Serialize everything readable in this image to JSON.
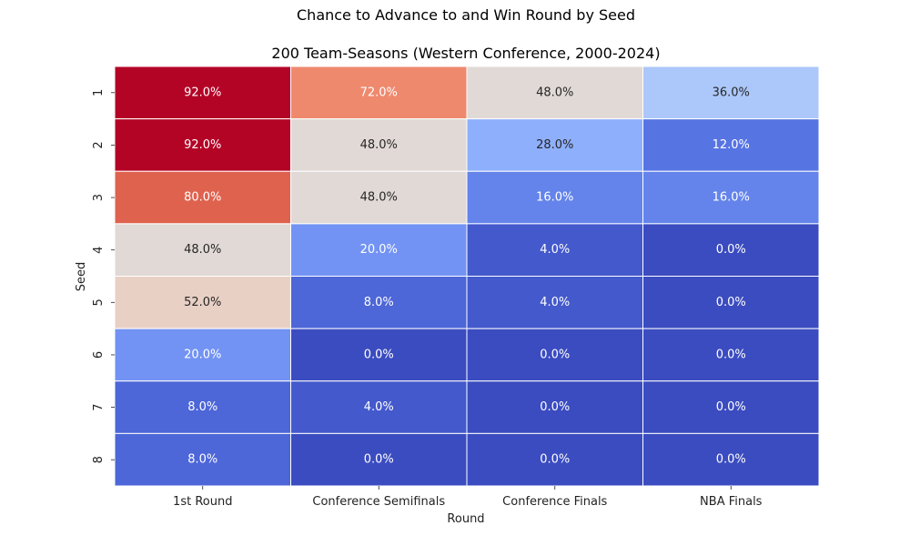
{
  "chart_data": {
    "type": "heatmap",
    "title": "Chance to Advance to and Win Round by Seed",
    "subtitle": "200 Team-Seasons (Western Conference, 2000-2024)",
    "xlabel": "Round",
    "ylabel": "Seed",
    "x_categories": [
      "1st Round",
      "Conference Semifinals",
      "Conference Finals",
      "NBA Finals"
    ],
    "y_categories": [
      "1",
      "2",
      "3",
      "4",
      "5",
      "6",
      "7",
      "8"
    ],
    "values": [
      [
        92.0,
        72.0,
        48.0,
        36.0
      ],
      [
        92.0,
        48.0,
        28.0,
        12.0
      ],
      [
        80.0,
        48.0,
        16.0,
        16.0
      ],
      [
        48.0,
        20.0,
        4.0,
        0.0
      ],
      [
        52.0,
        8.0,
        4.0,
        0.0
      ],
      [
        20.0,
        0.0,
        0.0,
        0.0
      ],
      [
        8.0,
        4.0,
        0.0,
        0.0
      ],
      [
        8.0,
        0.0,
        0.0,
        0.0
      ]
    ],
    "value_labels": [
      [
        "92.0%",
        "72.0%",
        "48.0%",
        "36.0%"
      ],
      [
        "92.0%",
        "48.0%",
        "28.0%",
        "12.0%"
      ],
      [
        "80.0%",
        "48.0%",
        "16.0%",
        "16.0%"
      ],
      [
        "48.0%",
        "20.0%",
        "4.0%",
        "0.0%"
      ],
      [
        "52.0%",
        "8.0%",
        "4.0%",
        "0.0%"
      ],
      [
        "20.0%",
        "0.0%",
        "0.0%",
        "0.0%"
      ],
      [
        "8.0%",
        "4.0%",
        "0.0%",
        "0.0%"
      ],
      [
        "8.0%",
        "0.0%",
        "0.0%",
        "0.0%"
      ]
    ],
    "color_range": [
      0,
      92
    ],
    "colormap": "coolwarm",
    "colorbar": false,
    "grid": false
  }
}
